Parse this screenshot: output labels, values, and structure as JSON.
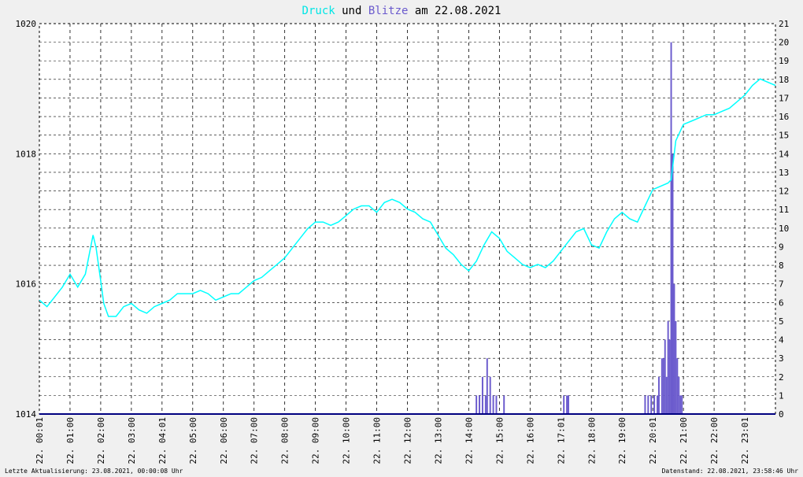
{
  "title": {
    "word1": "Druck",
    "word2": " und ",
    "word3": "Blitze",
    "word4": " am 22.08.2021"
  },
  "footer": {
    "left": "Letzte Aktualisierung: 23.08.2021, 00:00:08 Uhr",
    "right": "Datenstand: 22.08.2021, 23:58:46 Uhr"
  },
  "colors": {
    "background": "#f0f0f0",
    "plot_background": "#ffffff",
    "pressure": "#00ffff",
    "lightning": "#6a5acd",
    "title_druck": "#00e5e5",
    "title_blitze": "#6a5acd",
    "grid": "#000000",
    "baseline": "#000080"
  },
  "chart_data": {
    "type": "line",
    "grid": true,
    "x_tick_labels": [
      "22. 00:01",
      "22. 01:00",
      "22. 02:00",
      "22. 03:00",
      "22. 04:01",
      "22. 05:00",
      "22. 06:00",
      "22. 07:00",
      "22. 08:00",
      "22. 09:00",
      "22. 10:00",
      "22. 11:00",
      "22. 12:00",
      "22. 13:00",
      "22. 14:00",
      "22. 15:00",
      "22. 16:00",
      "22. 17:01",
      "22. 18:00",
      "22. 19:00",
      "22. 20:01",
      "22. 21:00",
      "22. 22:00",
      "22. 23:01"
    ],
    "y_left": {
      "ylim": [
        1014,
        1020
      ],
      "ticks": [
        "1014",
        "1016",
        "1018",
        "1020"
      ]
    },
    "y_right": {
      "ylim": [
        0,
        21
      ],
      "ticks": [
        "0",
        "1",
        "2",
        "3",
        "4",
        "5",
        "6",
        "7",
        "8",
        "9",
        "10",
        "11",
        "12",
        "13",
        "14",
        "15",
        "16",
        "17",
        "18",
        "19",
        "20",
        "21"
      ]
    },
    "xlim_hours": [
      0,
      24
    ],
    "series": [
      {
        "name": "Druck",
        "axis": "left",
        "x_hours": [
          0.0,
          0.25,
          0.5,
          0.75,
          1.0,
          1.25,
          1.5,
          1.75,
          1.85,
          2.0,
          2.1,
          2.25,
          2.5,
          2.75,
          3.0,
          3.25,
          3.5,
          3.75,
          4.0,
          4.25,
          4.5,
          4.75,
          5.0,
          5.25,
          5.5,
          5.75,
          6.0,
          6.25,
          6.5,
          6.75,
          7.0,
          7.25,
          7.5,
          7.75,
          8.0,
          8.25,
          8.5,
          8.75,
          9.0,
          9.25,
          9.5,
          9.75,
          10.0,
          10.25,
          10.5,
          10.75,
          11.0,
          11.25,
          11.5,
          11.75,
          12.0,
          12.25,
          12.5,
          12.75,
          13.0,
          13.25,
          13.5,
          13.75,
          14.0,
          14.25,
          14.5,
          14.75,
          15.0,
          15.25,
          15.5,
          15.75,
          16.0,
          16.25,
          16.5,
          16.75,
          17.0,
          17.25,
          17.5,
          17.75,
          18.0,
          18.25,
          18.5,
          18.75,
          19.0,
          19.25,
          19.5,
          19.75,
          20.0,
          20.25,
          20.5,
          20.6,
          20.75,
          21.0,
          21.25,
          21.5,
          21.75,
          22.0,
          22.25,
          22.5,
          22.75,
          23.0,
          23.25,
          23.5,
          23.75,
          24.0
        ],
        "values": [
          1015.75,
          1015.65,
          1015.8,
          1015.95,
          1016.15,
          1015.95,
          1016.15,
          1016.75,
          1016.55,
          1016.05,
          1015.7,
          1015.5,
          1015.5,
          1015.65,
          1015.7,
          1015.6,
          1015.55,
          1015.65,
          1015.7,
          1015.75,
          1015.85,
          1015.85,
          1015.85,
          1015.9,
          1015.85,
          1015.75,
          1015.8,
          1015.85,
          1015.85,
          1015.95,
          1016.05,
          1016.1,
          1016.2,
          1016.3,
          1016.4,
          1016.55,
          1016.7,
          1016.85,
          1016.95,
          1016.95,
          1016.9,
          1016.95,
          1017.05,
          1017.15,
          1017.2,
          1017.2,
          1017.1,
          1017.25,
          1017.3,
          1017.25,
          1017.15,
          1017.1,
          1017.0,
          1016.95,
          1016.75,
          1016.55,
          1016.45,
          1016.3,
          1016.2,
          1016.35,
          1016.6,
          1016.8,
          1016.7,
          1016.5,
          1016.4,
          1016.3,
          1016.25,
          1016.3,
          1016.25,
          1016.35,
          1016.5,
          1016.65,
          1016.8,
          1016.85,
          1016.6,
          1016.55,
          1016.8,
          1017.0,
          1017.1,
          1017.0,
          1016.95,
          1017.2,
          1017.45,
          1017.5,
          1017.55,
          1017.6,
          1018.2,
          1018.45,
          1018.5,
          1018.55,
          1018.6,
          1018.6,
          1018.65,
          1018.7,
          1018.8,
          1018.9,
          1019.05,
          1019.15,
          1019.1,
          1019.05
        ]
      },
      {
        "name": "Blitze",
        "axis": "right",
        "type": "bar",
        "x_hours": [
          14.25,
          14.35,
          14.45,
          14.55,
          14.6,
          14.7,
          14.8,
          14.9,
          15.05,
          15.15,
          17.1,
          17.2,
          17.25,
          19.75,
          19.85,
          19.95,
          20.05,
          20.15,
          20.2,
          20.3,
          20.35,
          20.4,
          20.45,
          20.5,
          20.55,
          20.6,
          20.65,
          20.7,
          20.75,
          20.8,
          20.85,
          20.9,
          20.95,
          21.0
        ],
        "values": [
          1,
          1,
          2,
          1,
          3,
          2,
          1,
          1,
          0,
          1,
          1,
          1,
          1,
          1,
          1,
          1,
          1,
          1,
          2,
          3,
          3,
          4,
          2,
          5,
          4,
          20,
          14,
          7,
          5,
          3,
          2,
          1,
          1,
          0
        ]
      }
    ]
  }
}
